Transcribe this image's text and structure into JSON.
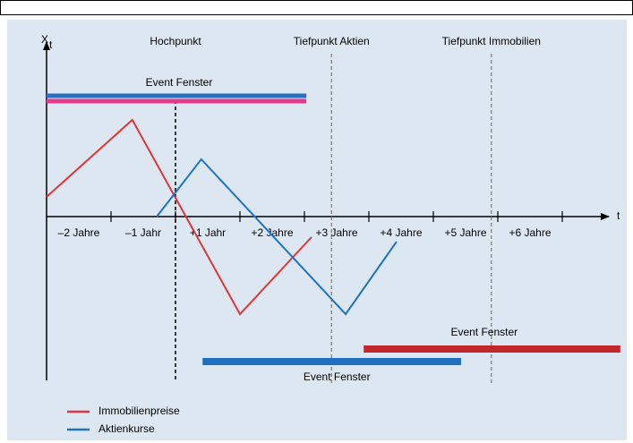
{
  "chart_data": {
    "type": "line",
    "y_label": "X",
    "y_label_sub": "t",
    "x_label": "t",
    "xlim": [
      -2,
      6.8
    ],
    "xticks": [
      -1,
      0,
      1,
      2,
      3,
      4,
      5,
      6
    ],
    "tick_labels": [
      "–2 Jahre",
      "–1 Jahr",
      "+1 Jahr",
      "+2 Jahre",
      "+3 Jahre",
      "+4 Jahre",
      "+5 Jahre",
      "+6 Jahre"
    ],
    "markers": [
      {
        "label": "Hochpunkt",
        "x": 0,
        "color": "#000000"
      },
      {
        "label": "Tiefpunkt Aktien",
        "x": 2.42,
        "color": "#1f73c4"
      },
      {
        "label": "Tiefpunkt Immobilien",
        "x": 4.9,
        "color": "#d9262e"
      }
    ],
    "series": [
      {
        "name": "Immobilienpreise",
        "color": "#e0353a",
        "x": [
          -2,
          -0.67,
          1,
          2.11
        ],
        "values": [
          22,
          108,
          -109,
          -23
        ]
      },
      {
        "name": "Aktienkurse",
        "color": "#1f73c4",
        "x": [
          -0.29,
          0.4,
          2.64,
          3.43
        ],
        "values": [
          0,
          64,
          -109,
          -28
        ]
      }
    ],
    "event_windows": [
      {
        "label": "Event Fenster",
        "bars": [
          {
            "start": -2,
            "end": 2.03,
            "color": "#2a6fc0"
          },
          {
            "start": -2,
            "end": 2.03,
            "color": "#e03a8c"
          }
        ]
      },
      {
        "label": "Event Fenster",
        "bars": [
          {
            "start": 0.42,
            "end": 4.43,
            "color": "#1f6fbf"
          }
        ]
      },
      {
        "label": "Event Fenster",
        "bars": [
          {
            "start": 2.92,
            "end": 6.9,
            "color": "#c0282d"
          }
        ]
      }
    ]
  }
}
